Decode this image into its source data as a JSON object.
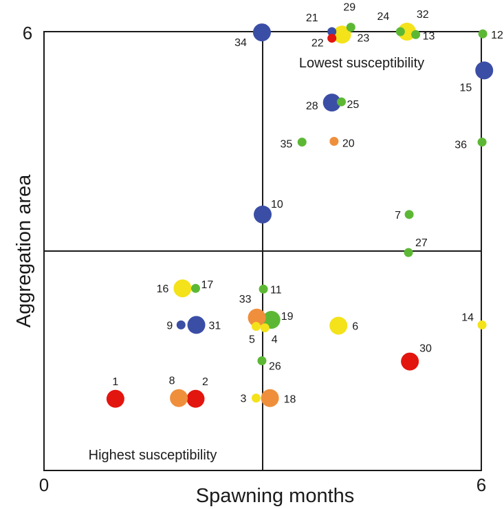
{
  "chart_data": {
    "type": "scatter",
    "title": "",
    "xlabel": "Spawning months",
    "ylabel": "Aggregation area",
    "xlim": [
      0,
      6
    ],
    "ylim": [
      0,
      6
    ],
    "x_ticks": [
      "0",
      "6"
    ],
    "y_ticks": [
      "6"
    ],
    "quadrant_lines": {
      "x": 3,
      "y": 3
    },
    "annotations": [
      "Lowest susceptibility",
      "Highest susceptibility"
    ],
    "colors": {
      "red": "#e3150f",
      "orange": "#ef8f3c",
      "yellow": "#f4e21a",
      "green": "#5cb834",
      "blue": "#3b4ea6"
    },
    "points": [
      {
        "label": "1",
        "x": 0.98,
        "y": 0.98,
        "color": "red",
        "size": "large"
      },
      {
        "label": "2",
        "x": 2.08,
        "y": 0.98,
        "color": "red",
        "size": "large"
      },
      {
        "label": "3",
        "x": 2.91,
        "y": 0.99,
        "color": "yellow",
        "size": "small"
      },
      {
        "label": "4",
        "x": 3.03,
        "y": 1.95,
        "color": "yellow",
        "size": "small"
      },
      {
        "label": "5",
        "x": 2.91,
        "y": 1.97,
        "color": "yellow",
        "size": "small"
      },
      {
        "label": "6",
        "x": 4.04,
        "y": 1.98,
        "color": "yellow",
        "size": "large"
      },
      {
        "label": "7",
        "x": 5.01,
        "y": 3.5,
        "color": "green",
        "size": "small"
      },
      {
        "label": "8",
        "x": 1.85,
        "y": 0.99,
        "color": "orange",
        "size": "large"
      },
      {
        "label": "9",
        "x": 1.88,
        "y": 1.99,
        "color": "blue",
        "size": "small"
      },
      {
        "label": "10",
        "x": 3.0,
        "y": 3.5,
        "color": "blue",
        "size": "large"
      },
      {
        "label": "11",
        "x": 3.01,
        "y": 2.48,
        "color": "green",
        "size": "small"
      },
      {
        "label": "12",
        "x": 6.02,
        "y": 5.97,
        "color": "green",
        "size": "small"
      },
      {
        "label": "13",
        "x": 5.1,
        "y": 5.96,
        "color": "green",
        "size": "small"
      },
      {
        "label": "14",
        "x": 6.01,
        "y": 1.99,
        "color": "yellow",
        "size": "small"
      },
      {
        "label": "15",
        "x": 6.04,
        "y": 5.47,
        "color": "blue",
        "size": "large"
      },
      {
        "label": "16",
        "x": 1.9,
        "y": 2.49,
        "color": "yellow",
        "size": "large"
      },
      {
        "label": "17",
        "x": 2.08,
        "y": 2.49,
        "color": "green",
        "size": "small"
      },
      {
        "label": "18",
        "x": 3.1,
        "y": 0.99,
        "color": "orange",
        "size": "large"
      },
      {
        "label": "19",
        "x": 3.12,
        "y": 2.06,
        "color": "green",
        "size": "large"
      },
      {
        "label": "20",
        "x": 3.98,
        "y": 4.5,
        "color": "orange",
        "size": "small"
      },
      {
        "label": "21",
        "x": 3.95,
        "y": 6.0,
        "color": "blue",
        "size": "small"
      },
      {
        "label": "22",
        "x": 3.95,
        "y": 5.91,
        "color": "red",
        "size": "small"
      },
      {
        "label": "23",
        "x": 4.09,
        "y": 5.96,
        "color": "yellow",
        "size": "large"
      },
      {
        "label": "24",
        "x": 4.89,
        "y": 6.0,
        "color": "green",
        "size": "small"
      },
      {
        "label": "25",
        "x": 4.08,
        "y": 5.04,
        "color": "green",
        "size": "small"
      },
      {
        "label": "26",
        "x": 2.99,
        "y": 1.5,
        "color": "green",
        "size": "small"
      },
      {
        "label": "27",
        "x": 5.0,
        "y": 2.98,
        "color": "green",
        "size": "small"
      },
      {
        "label": "28",
        "x": 3.95,
        "y": 5.03,
        "color": "blue",
        "size": "large"
      },
      {
        "label": "29",
        "x": 4.21,
        "y": 6.06,
        "color": "green",
        "size": "small"
      },
      {
        "label": "30",
        "x": 5.02,
        "y": 1.49,
        "color": "red",
        "size": "large"
      },
      {
        "label": "31",
        "x": 2.09,
        "y": 1.99,
        "color": "blue",
        "size": "large"
      },
      {
        "label": "32",
        "x": 4.98,
        "y": 6.0,
        "color": "yellow",
        "size": "large"
      },
      {
        "label": "33",
        "x": 2.92,
        "y": 2.09,
        "color": "orange",
        "size": "large"
      },
      {
        "label": "34",
        "x": 2.99,
        "y": 5.99,
        "color": "blue",
        "size": "large"
      },
      {
        "label": "35",
        "x": 3.54,
        "y": 4.49,
        "color": "green",
        "size": "small"
      },
      {
        "label": "36",
        "x": 6.01,
        "y": 4.49,
        "color": "green",
        "size": "small"
      }
    ]
  }
}
